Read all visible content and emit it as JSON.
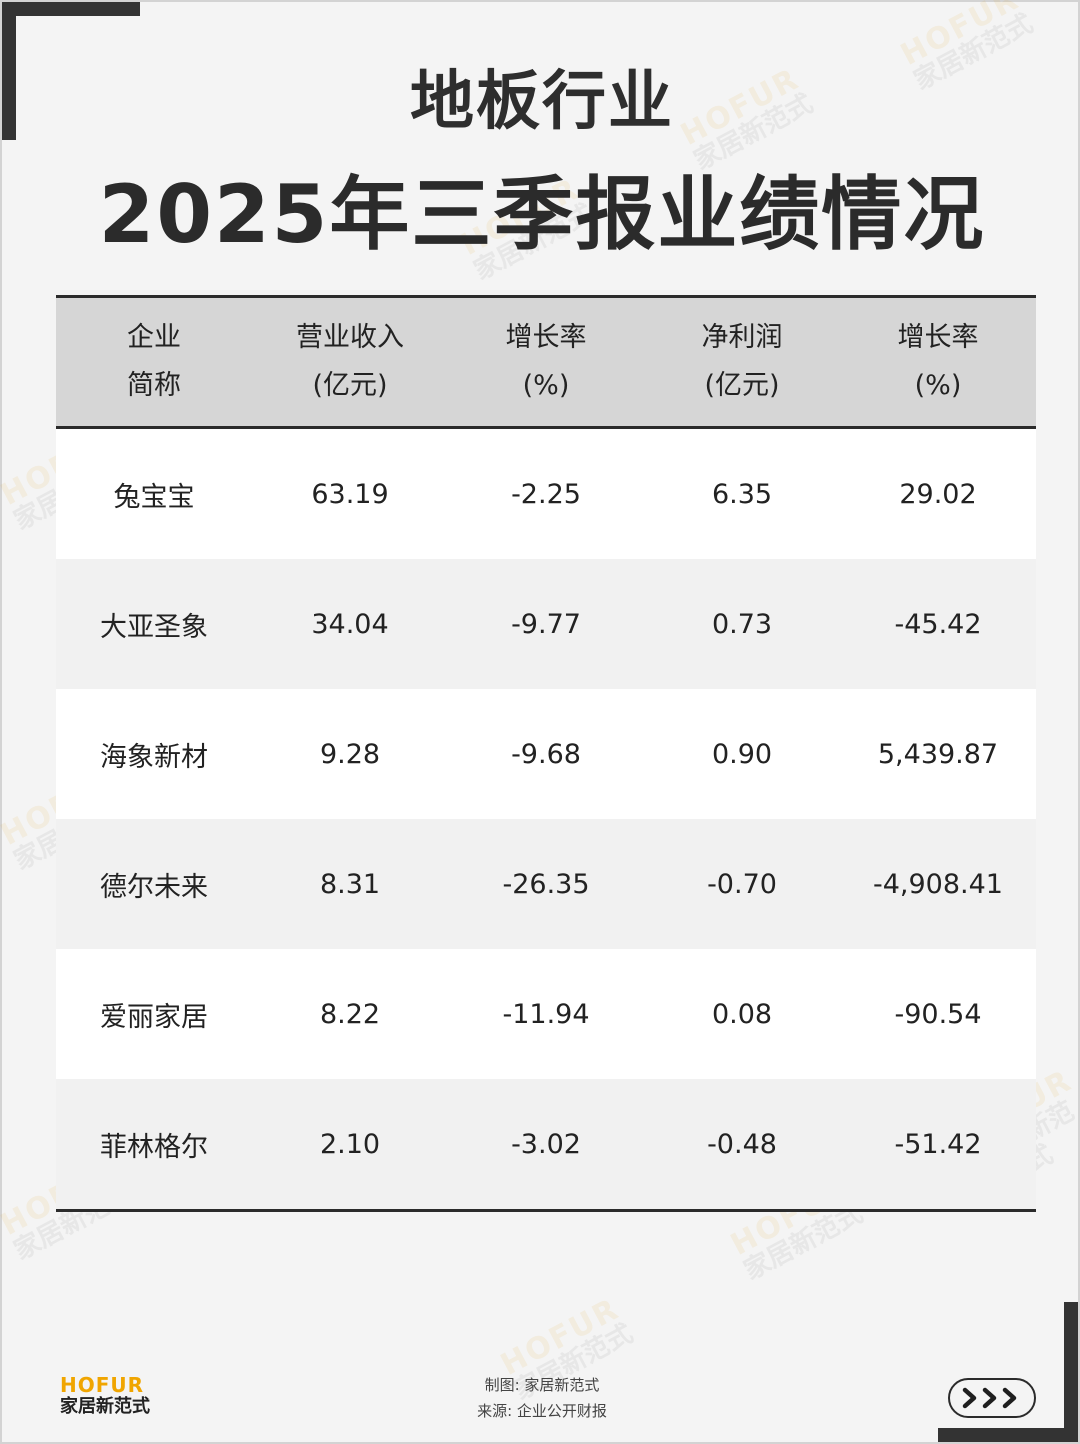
{
  "title": "地板行业",
  "subtitle": "2025年三季报业绩情况",
  "table": {
    "headers": [
      {
        "line1": "企业",
        "line2": "简称"
      },
      {
        "line1": "营业收入",
        "line2": "(亿元)"
      },
      {
        "line1": "增长率",
        "line2": "(%)"
      },
      {
        "line1": "净利润",
        "line2": "(亿元)"
      },
      {
        "line1": "增长率",
        "line2": "(%)"
      }
    ],
    "rows": [
      [
        "兔宝宝",
        "63.19",
        "-2.25",
        "6.35",
        "29.02"
      ],
      [
        "大亚圣象",
        "34.04",
        "-9.77",
        "0.73",
        "-45.42"
      ],
      [
        "海象新材",
        "9.28",
        "-9.68",
        "0.90",
        "5,439.87"
      ],
      [
        "德尔未来",
        "8.31",
        "-26.35",
        "-0.70",
        "-4,908.41"
      ],
      [
        "爱丽家居",
        "8.22",
        "-11.94",
        "0.08",
        "-90.54"
      ],
      [
        "菲林格尔",
        "2.10",
        "-3.02",
        "-0.48",
        "-51.42"
      ]
    ]
  },
  "watermark": {
    "en": "HOFUR",
    "cn": "家居新范式"
  },
  "logo": {
    "en": "HOFUR",
    "cn": "家居新范式"
  },
  "footer": {
    "made_by": "制图: 家居新范式",
    "source": "来源: 企业公开财报"
  },
  "next_icon": "triple-chevron-right-icon"
}
